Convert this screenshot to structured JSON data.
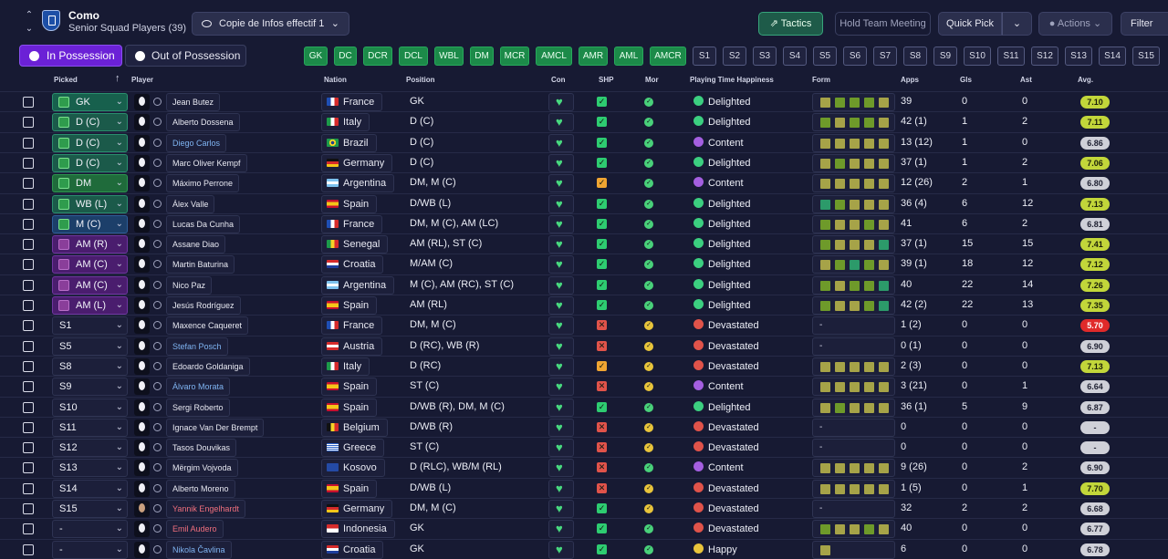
{
  "header": {
    "club_name": "Como",
    "squad_label": "Senior Squad Players (39)",
    "view_selector": "Copie de Infos effectif 1",
    "buttons": {
      "tactics": "Tactics",
      "hold_meeting": "Hold Team Meeting",
      "quick_pick": "Quick Pick",
      "actions": "Actions",
      "filter": "Filter"
    }
  },
  "possession": {
    "in_label": "In Possession",
    "out_label": "Out of Possession"
  },
  "position_chips": {
    "starting": [
      "GK",
      "DC",
      "DCR",
      "DCL",
      "WBL",
      "DM",
      "MCR",
      "AMCL",
      "AMR",
      "AML",
      "AMCR"
    ],
    "subs": [
      "S1",
      "S2",
      "S3",
      "S4",
      "S5",
      "S6",
      "S7",
      "S8",
      "S9",
      "S10",
      "S11",
      "S12",
      "S13",
      "S14",
      "S15"
    ]
  },
  "columns": {
    "picked": "Picked",
    "player": "Player",
    "nation": "Nation",
    "position": "Position",
    "con": "Con",
    "shp": "SHP",
    "mor": "Mor",
    "pth": "Playing Time Happiness",
    "form": "Form",
    "apps": "Apps",
    "gls": "Gls",
    "ast": "Ast",
    "avg": "Avg."
  },
  "colors": {
    "accent_purple": "#6b21d6",
    "chip_green": "#1c8a49",
    "good": "#2ecc71",
    "warn": "#f0b429",
    "bad": "#e74c3c"
  },
  "rows": [
    {
      "picked": "GK",
      "slot": "gk",
      "name": "Jean Butez",
      "name_color": "white",
      "nation": "France",
      "flag": "fr",
      "position": "GK",
      "shp": "ok",
      "mor": "good",
      "pth": "Delighted",
      "form": [
        "o",
        "g",
        "g",
        "g",
        "o"
      ],
      "apps": "39",
      "gls": "0",
      "ast": "0",
      "avg": "7.10",
      "avg_tier": "good"
    },
    {
      "picked": "D (C)",
      "slot": "d",
      "name": "Alberto Dossena",
      "name_color": "white",
      "nation": "Italy",
      "flag": "it",
      "position": "D (C)",
      "shp": "ok",
      "mor": "good",
      "pth": "Delighted",
      "form": [
        "g",
        "o",
        "g",
        "g",
        "o"
      ],
      "apps": "42 (1)",
      "gls": "1",
      "ast": "2",
      "avg": "7.11",
      "avg_tier": "good"
    },
    {
      "picked": "D (C)",
      "slot": "d",
      "name": "Diego Carlos",
      "name_color": "blue",
      "nation": "Brazil",
      "flag": "br",
      "position": "D (C)",
      "shp": "ok",
      "mor": "good",
      "pth": "Content",
      "form": [
        "o",
        "o",
        "o",
        "o",
        "o"
      ],
      "apps": "13 (12)",
      "gls": "1",
      "ast": "0",
      "avg": "6.86",
      "avg_tier": "neutral"
    },
    {
      "picked": "D (C)",
      "slot": "d",
      "name": "Marc Oliver Kempf",
      "name_color": "white",
      "nation": "Germany",
      "flag": "de",
      "position": "D (C)",
      "shp": "ok",
      "mor": "good",
      "pth": "Delighted",
      "form": [
        "o",
        "g",
        "o",
        "o",
        "o"
      ],
      "apps": "37 (1)",
      "gls": "1",
      "ast": "2",
      "avg": "7.06",
      "avg_tier": "good"
    },
    {
      "picked": "DM",
      "slot": "dm",
      "name": "Máximo Perrone",
      "name_color": "white",
      "nation": "Argentina",
      "flag": "ar",
      "position": "DM, M (C)",
      "shp": "warn",
      "mor": "good",
      "pth": "Content",
      "form": [
        "o",
        "o",
        "o",
        "o",
        "o"
      ],
      "apps": "12 (26)",
      "gls": "2",
      "ast": "1",
      "avg": "6.80",
      "avg_tier": "neutral"
    },
    {
      "picked": "WB (L)",
      "slot": "d",
      "name": "Álex Valle",
      "name_color": "white",
      "nation": "Spain",
      "flag": "es",
      "position": "D/WB (L)",
      "shp": "ok",
      "mor": "good",
      "pth": "Delighted",
      "form": [
        "t",
        "g",
        "o",
        "o",
        "o"
      ],
      "apps": "36 (4)",
      "gls": "6",
      "ast": "12",
      "avg": "7.13",
      "avg_tier": "good"
    },
    {
      "picked": "M (C)",
      "slot": "mid",
      "name": "Lucas Da Cunha",
      "name_color": "white",
      "nation": "France",
      "flag": "fr",
      "position": "DM, M (C), AM (LC)",
      "shp": "ok",
      "mor": "good",
      "pth": "Delighted",
      "form": [
        "g",
        "o",
        "o",
        "g",
        "o"
      ],
      "apps": "41",
      "gls": "6",
      "ast": "2",
      "avg": "6.81",
      "avg_tier": "neutral"
    },
    {
      "picked": "AM (R)",
      "slot": "am",
      "name": "Assane Diao",
      "name_color": "white",
      "nation": "Senegal",
      "flag": "sn",
      "position": "AM (RL), ST (C)",
      "shp": "ok",
      "mor": "good",
      "pth": "Delighted",
      "form": [
        "g",
        "o",
        "o",
        "o",
        "t"
      ],
      "apps": "37 (1)",
      "gls": "15",
      "ast": "15",
      "avg": "7.41",
      "avg_tier": "good"
    },
    {
      "picked": "AM (C)",
      "slot": "am",
      "name": "Martin Baturina",
      "name_color": "white",
      "nation": "Croatia",
      "flag": "hr",
      "position": "M/AM (C)",
      "shp": "ok",
      "mor": "good",
      "pth": "Delighted",
      "form": [
        "o",
        "g",
        "t",
        "g",
        "o"
      ],
      "apps": "39 (1)",
      "gls": "18",
      "ast": "12",
      "avg": "7.12",
      "avg_tier": "good"
    },
    {
      "picked": "AM (C)",
      "slot": "am",
      "name": "Nico Paz",
      "name_color": "white",
      "nation": "Argentina",
      "flag": "ar",
      "position": "M (C), AM (RC), ST (C)",
      "shp": "ok",
      "mor": "good",
      "pth": "Delighted",
      "form": [
        "g",
        "o",
        "g",
        "g",
        "t"
      ],
      "apps": "40",
      "gls": "22",
      "ast": "14",
      "avg": "7.26",
      "avg_tier": "good"
    },
    {
      "picked": "AM (L)",
      "slot": "am",
      "name": "Jesús Rodríguez",
      "name_color": "white",
      "nation": "Spain",
      "flag": "es",
      "position": "AM (RL)",
      "shp": "ok",
      "mor": "good",
      "pth": "Delighted",
      "form": [
        "g",
        "o",
        "o",
        "g",
        "t"
      ],
      "apps": "42 (2)",
      "gls": "22",
      "ast": "13",
      "avg": "7.35",
      "avg_tier": "good"
    },
    {
      "picked": "S1",
      "slot": "sub",
      "name": "Maxence Caqueret",
      "name_color": "white",
      "nation": "France",
      "flag": "fr",
      "position": "DM, M (C)",
      "shp": "bad",
      "mor": "warn",
      "pth": "Devastated",
      "form": [],
      "apps": "1 (2)",
      "gls": "0",
      "ast": "0",
      "avg": "5.70",
      "avg_tier": "bad"
    },
    {
      "picked": "S5",
      "slot": "sub",
      "name": "Stefan Posch",
      "name_color": "blue",
      "nation": "Austria",
      "flag": "at",
      "position": "D (RC), WB (R)",
      "shp": "bad",
      "mor": "warn",
      "pth": "Devastated",
      "form": [],
      "apps": "0 (1)",
      "gls": "0",
      "ast": "0",
      "avg": "6.90",
      "avg_tier": "neutral"
    },
    {
      "picked": "S8",
      "slot": "sub",
      "name": "Edoardo Goldaniga",
      "name_color": "white",
      "nation": "Italy",
      "flag": "it",
      "position": "D (RC)",
      "shp": "warn",
      "mor": "warn",
      "pth": "Devastated",
      "form": [
        "o",
        "o",
        "o",
        "o",
        "o"
      ],
      "apps": "2 (3)",
      "gls": "0",
      "ast": "0",
      "avg": "7.13",
      "avg_tier": "good"
    },
    {
      "picked": "S9",
      "slot": "sub",
      "name": "Álvaro Morata",
      "name_color": "blue",
      "nation": "Spain",
      "flag": "es",
      "position": "ST (C)",
      "shp": "bad",
      "mor": "warn",
      "pth": "Content",
      "form": [
        "o",
        "o",
        "o",
        "o",
        "o"
      ],
      "apps": "3 (21)",
      "gls": "0",
      "ast": "1",
      "avg": "6.64",
      "avg_tier": "neutral"
    },
    {
      "picked": "S10",
      "slot": "sub",
      "name": "Sergi Roberto",
      "name_color": "white",
      "nation": "Spain",
      "flag": "es",
      "position": "D/WB (R), DM, M (C)",
      "shp": "ok",
      "mor": "good",
      "pth": "Delighted",
      "form": [
        "o",
        "g",
        "o",
        "o",
        "o"
      ],
      "apps": "36 (1)",
      "gls": "5",
      "ast": "9",
      "avg": "6.87",
      "avg_tier": "neutral"
    },
    {
      "picked": "S11",
      "slot": "sub",
      "name": "Ignace Van Der Brempt",
      "name_color": "white",
      "nation": "Belgium",
      "flag": "be",
      "position": "D/WB (R)",
      "shp": "bad",
      "mor": "warn",
      "pth": "Devastated",
      "form": [],
      "apps": "0",
      "gls": "0",
      "ast": "0",
      "avg": "-",
      "avg_tier": "neutral"
    },
    {
      "picked": "S12",
      "slot": "sub",
      "name": "Tasos Douvikas",
      "name_color": "white",
      "nation": "Greece",
      "flag": "gr",
      "position": "ST (C)",
      "shp": "bad",
      "mor": "warn",
      "pth": "Devastated",
      "form": [],
      "apps": "0",
      "gls": "0",
      "ast": "0",
      "avg": "-",
      "avg_tier": "neutral"
    },
    {
      "picked": "S13",
      "slot": "sub",
      "name": "Mërgim Vojvoda",
      "name_color": "white",
      "nation": "Kosovo",
      "flag": "xk",
      "position": "D (RLC), WB/M (RL)",
      "shp": "bad",
      "mor": "good",
      "pth": "Content",
      "form": [
        "o",
        "o",
        "o",
        "o",
        "o"
      ],
      "apps": "9 (26)",
      "gls": "0",
      "ast": "2",
      "avg": "6.90",
      "avg_tier": "neutral"
    },
    {
      "picked": "S14",
      "slot": "sub",
      "name": "Alberto Moreno",
      "name_color": "white",
      "nation": "Spain",
      "flag": "es",
      "position": "D/WB (L)",
      "shp": "bad",
      "mor": "warn",
      "pth": "Devastated",
      "form": [
        "o",
        "o",
        "o",
        "o",
        "o"
      ],
      "apps": "1 (5)",
      "gls": "0",
      "ast": "1",
      "avg": "7.70",
      "avg_tier": "good"
    },
    {
      "picked": "S15",
      "slot": "sub",
      "name": "Yannik Engelhardt",
      "name_color": "red",
      "nation": "Germany",
      "flag": "de",
      "position": "DM, M (C)",
      "shp": "ok",
      "mor": "warn",
      "pth": "Devastated",
      "form": [],
      "apps": "32",
      "gls": "2",
      "ast": "2",
      "avg": "6.68",
      "avg_tier": "neutral",
      "photo": true
    },
    {
      "picked": "-",
      "slot": "none",
      "name": "Emil Audero",
      "name_color": "red",
      "nation": "Indonesia",
      "flag": "id",
      "position": "GK",
      "shp": "ok",
      "mor": "good",
      "pth": "Devastated",
      "form": [
        "g",
        "o",
        "o",
        "g",
        "o"
      ],
      "apps": "40",
      "gls": "0",
      "ast": "0",
      "avg": "6.77",
      "avg_tier": "neutral"
    },
    {
      "picked": "-",
      "slot": "none",
      "name": "Nikola Čavlina",
      "name_color": "blue",
      "nation": "Croatia",
      "flag": "hr",
      "position": "GK",
      "shp": "ok",
      "mor": "good",
      "pth": "Happy",
      "form": [
        "o"
      ],
      "apps": "6",
      "gls": "0",
      "ast": "0",
      "avg": "6.78",
      "avg_tier": "neutral"
    }
  ]
}
